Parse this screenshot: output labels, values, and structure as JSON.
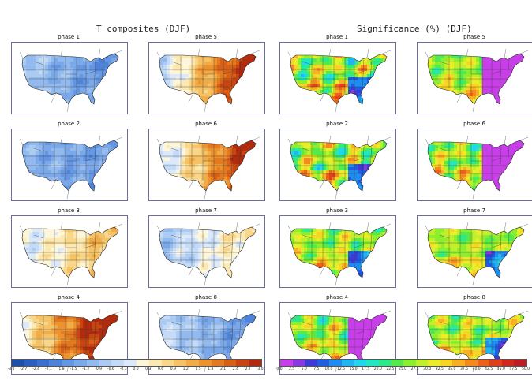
{
  "titles": {
    "left": "T composites (DJF)",
    "right": "Significance (%) (DJF)"
  },
  "panels": {
    "temperature": [
      {
        "label": "phase 1",
        "warm_east": 0.0,
        "cool_east": 0.55,
        "warm_west": 0.25
      },
      {
        "label": "phase 5",
        "warm_east": 0.85,
        "cool_east": 0.0,
        "warm_west": 0.1
      },
      {
        "label": "phase 2",
        "warm_east": 0.05,
        "cool_east": 0.45,
        "warm_west": 0.1
      },
      {
        "label": "phase 6",
        "warm_east": 0.8,
        "cool_east": 0.0,
        "warm_west": 0.15
      },
      {
        "label": "phase 3",
        "warm_east": 0.35,
        "cool_east": 0.0,
        "warm_west": 0.3
      },
      {
        "label": "phase 7",
        "warm_east": 0.3,
        "cool_east": 0.1,
        "warm_west": 0.05
      },
      {
        "label": "phase 4",
        "warm_east": 0.9,
        "cool_east": 0.0,
        "warm_west": 0.45
      },
      {
        "label": "phase 8",
        "warm_east": 0.0,
        "cool_east": 0.5,
        "warm_west": 0.35
      }
    ],
    "significance": [
      {
        "label": "phase 1",
        "magenta_east": 0.1,
        "hot": 0.7
      },
      {
        "label": "phase 5",
        "magenta_east": 0.8,
        "hot": 0.4
      },
      {
        "label": "phase 2",
        "magenta_east": 0.15,
        "hot": 0.65
      },
      {
        "label": "phase 6",
        "magenta_east": 0.85,
        "hot": 0.6
      },
      {
        "label": "phase 3",
        "magenta_east": 0.1,
        "hot": 0.45
      },
      {
        "label": "phase 7",
        "magenta_east": 0.05,
        "hot": 0.3
      },
      {
        "label": "phase 4",
        "magenta_east": 0.75,
        "hot": 0.55
      },
      {
        "label": "phase 8",
        "magenta_east": 0.05,
        "hot": 0.5
      }
    ]
  },
  "colorbars": {
    "temperature": {
      "ticks": [
        "-3.0",
        "-2.7",
        "-2.4",
        "-2.1",
        "-1.8",
        "-1.5",
        "-1.2",
        "-0.9",
        "-0.6",
        "-0.3",
        "0.0",
        "0.3",
        "0.6",
        "0.9",
        "1.2",
        "1.5",
        "1.8",
        "2.1",
        "2.4",
        "2.7",
        "3.0"
      ],
      "colors": [
        "#1f4fa8",
        "#2a5fbf",
        "#3a70cf",
        "#4d83da",
        "#6496e2",
        "#7ba8e8",
        "#93baee",
        "#abcbf2",
        "#c3dbf6",
        "#dbe9fa",
        "#fdf6d8",
        "#fbe8b2",
        "#f8d68a",
        "#f5c266",
        "#f1ab47",
        "#ec932f",
        "#e37a1f",
        "#d75f16",
        "#c84512",
        "#b12c0f"
      ]
    },
    "significance": {
      "ticks": [
        "0.0",
        "2.5",
        "5.0",
        "7.5",
        "10.0",
        "12.5",
        "15.0",
        "17.5",
        "20.0",
        "22.5",
        "25.0",
        "27.5",
        "30.0",
        "32.5",
        "35.0",
        "37.5",
        "40.0",
        "42.5",
        "45.0",
        "47.5",
        "50.0"
      ],
      "colors": [
        "#c83ee8",
        "#8a38e0",
        "#3d3ad8",
        "#1f5ee0",
        "#1f8cf0",
        "#20b6f4",
        "#22d6ee",
        "#24e6c0",
        "#2ee88a",
        "#54ea4e",
        "#8cee2e",
        "#c0f02c",
        "#eaee2a",
        "#f8d426",
        "#f8b022",
        "#f48a1e",
        "#ec621c",
        "#e0401c",
        "#d02a20",
        "#bc1e26"
      ]
    }
  }
}
